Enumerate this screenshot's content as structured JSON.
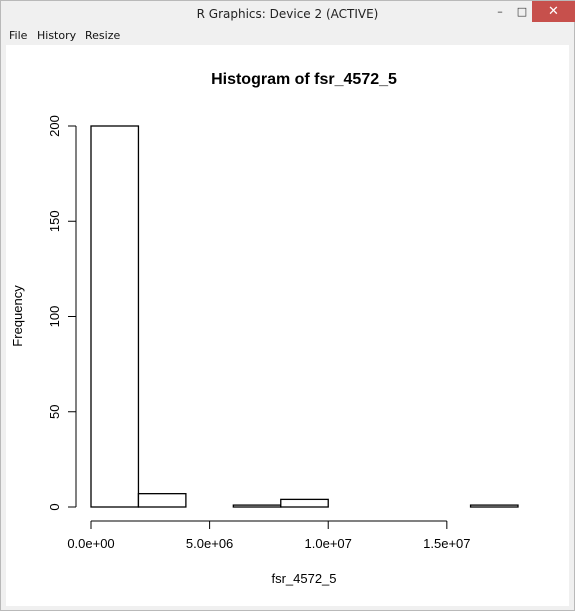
{
  "window": {
    "title": "R Graphics: Device 2 (ACTIVE)",
    "controls": {
      "minimize": "–",
      "maximize": "□",
      "close": "✕"
    }
  },
  "menu": {
    "items": [
      "File",
      "History",
      "Resize"
    ]
  },
  "chart_data": {
    "type": "bar",
    "title": "Histogram of fsr_4572_5",
    "xlabel": "fsr_4572_5",
    "ylabel": "Frequency",
    "bin_edges": [
      0,
      2000000,
      4000000,
      6000000,
      8000000,
      10000000,
      12000000,
      14000000,
      16000000,
      18000000
    ],
    "values": [
      200,
      7,
      0,
      1,
      4,
      0,
      0,
      0,
      1
    ],
    "xlim": [
      0,
      18000000
    ],
    "ylim": [
      0,
      200
    ],
    "xticks": [
      0,
      5000000,
      10000000,
      15000000
    ],
    "xtick_labels": [
      "0.0e+00",
      "5.0e+06",
      "1.0e+07",
      "1.5e+07"
    ],
    "yticks": [
      0,
      50,
      100,
      150,
      200
    ],
    "ytick_labels": [
      "0",
      "50",
      "100",
      "150",
      "200"
    ],
    "grid": false
  }
}
